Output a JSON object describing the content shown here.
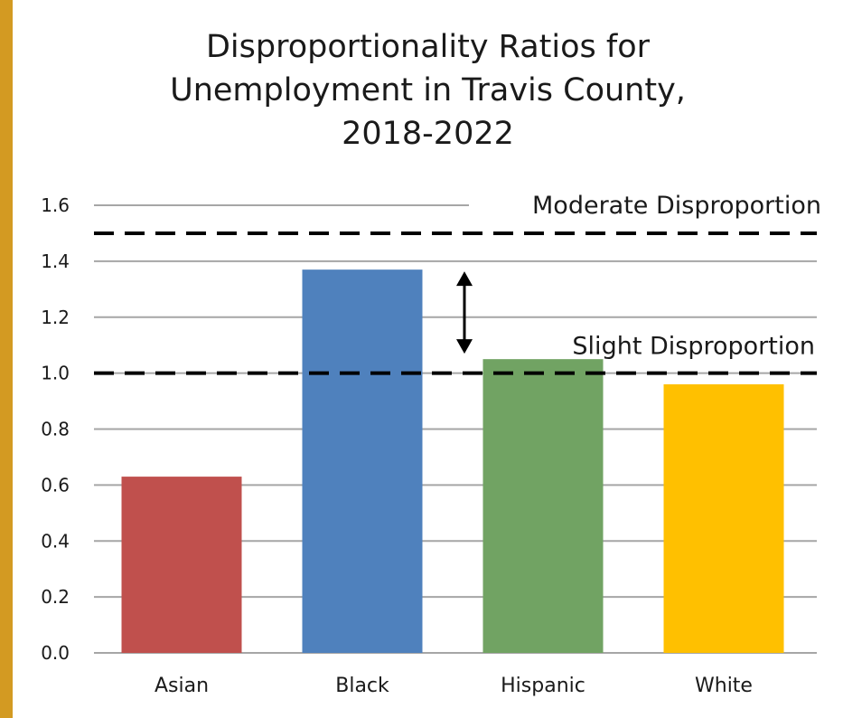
{
  "chart_data": {
    "type": "bar",
    "title_lines": [
      "Disproportionality Ratios for",
      "Unemployment in Travis County,",
      "2018-2022"
    ],
    "categories": [
      "Asian",
      "Black",
      "Hispanic",
      "White"
    ],
    "values": [
      0.63,
      1.37,
      1.05,
      0.96
    ],
    "colors": [
      "#c0504d",
      "#4f81bd",
      "#71a363",
      "#ffc000"
    ],
    "ylim": [
      0,
      1.6
    ],
    "yticks": [
      "0.0",
      "0.2",
      "0.4",
      "0.6",
      "0.8",
      "1.0",
      "1.2",
      "1.4",
      "1.6"
    ],
    "grid": true,
    "legend": "none",
    "reference_lines": [
      {
        "label": "Moderate Disproportion",
        "value": 1.5
      },
      {
        "label": "Slight Disproportion",
        "value": 1.0
      }
    ],
    "annotation_arrow": {
      "from": 1.37,
      "to": 1.05
    }
  }
}
